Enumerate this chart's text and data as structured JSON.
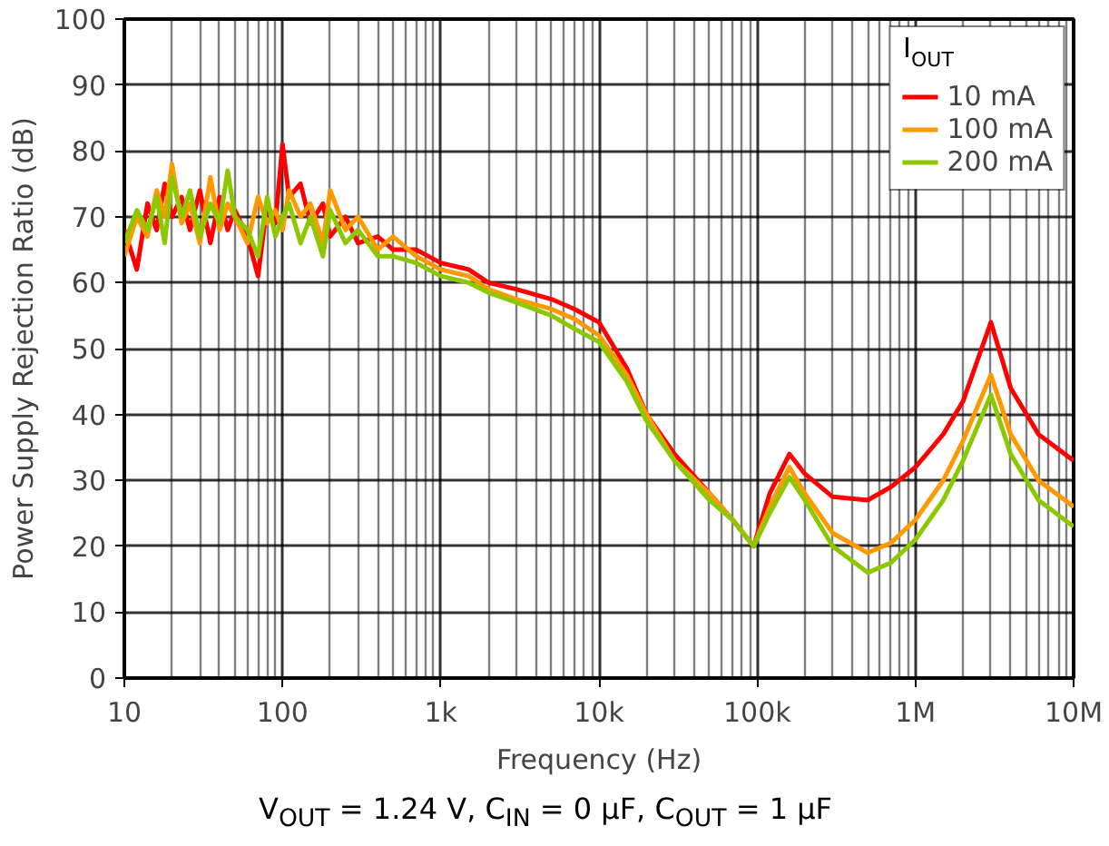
{
  "chart_data": {
    "type": "line",
    "xlabel": "Frequency (Hz)",
    "ylabel": "Power Supply Rejection Ratio (dB)",
    "legend_title": "I$_{OUT}$",
    "log": "x",
    "grid": true,
    "legend": "top right",
    "line_style": "solid",
    "marker": "none",
    "xlim": [
      10,
      10000000
    ],
    "xticks": [
      {
        "value": 10,
        "label": "10"
      },
      {
        "value": 100,
        "label": "100"
      },
      {
        "value": 1000,
        "label": "1k"
      },
      {
        "value": 10000,
        "label": "10k"
      },
      {
        "value": 100000,
        "label": "100k"
      },
      {
        "value": 1000000,
        "label": "1M"
      },
      {
        "value": 10000000,
        "label": "10M"
      }
    ],
    "ylim": [
      0,
      100
    ],
    "yticks": [
      0,
      10,
      20,
      30,
      40,
      50,
      60,
      70,
      80,
      90,
      100
    ],
    "x": [
      10,
      12,
      14,
      16,
      18,
      20,
      23,
      26,
      30,
      35,
      40,
      45,
      50,
      60,
      70,
      80,
      90,
      100,
      110,
      130,
      150,
      180,
      200,
      250,
      300,
      400,
      500,
      700,
      1000,
      1500,
      2000,
      3000,
      5000,
      7000,
      10000,
      15000,
      20000,
      30000,
      50000,
      70000,
      95000,
      120000,
      160000,
      200000,
      300000,
      500000,
      700000,
      1000000,
      1500000,
      2000000,
      3000000,
      4000000,
      6000000,
      10000000
    ],
    "annotations": [
      "V$_{OUT}$ = 1.24 V, C$_{IN}$ = 0 µF, C$_{OUT}$ = 1 µF"
    ],
    "series": [
      {
        "name": "10 mA",
        "color": "#ff0000",
        "values": [
          68,
          62,
          72,
          68,
          75,
          70,
          73,
          68,
          74,
          66,
          73,
          68,
          71,
          67,
          61,
          72,
          69,
          81,
          73,
          75,
          69,
          72,
          67,
          70,
          66,
          67,
          65,
          65,
          63,
          62,
          60,
          59,
          57.5,
          56,
          54,
          47,
          40,
          34,
          28,
          24,
          20,
          28,
          34,
          31,
          27.5,
          27,
          29,
          32,
          37,
          42,
          54,
          44,
          37,
          33
        ]
      },
      {
        "name": "100 mA",
        "color": "#ff9900",
        "values": [
          64,
          70,
          67,
          74,
          70,
          78,
          69,
          72,
          66,
          76,
          68,
          72,
          70,
          66,
          73,
          69,
          71,
          68,
          74,
          70,
          72,
          66,
          74,
          68,
          70,
          65,
          67,
          64,
          62,
          61,
          59,
          57.5,
          56,
          54.5,
          52,
          46,
          40,
          33,
          28,
          24,
          20,
          26,
          32,
          28,
          22,
          19,
          20.5,
          24,
          30,
          36,
          46,
          37,
          30,
          26
        ]
      },
      {
        "name": "200 mA",
        "color": "#8cc800",
        "values": [
          66,
          71,
          68,
          73,
          66,
          76,
          70,
          74,
          67,
          72,
          69,
          77,
          70,
          68,
          64,
          73,
          67,
          70,
          72,
          66,
          70,
          64,
          71,
          66,
          68,
          64,
          64,
          63,
          61,
          60,
          58.5,
          57,
          55,
          53,
          51,
          45,
          39,
          33,
          27,
          24,
          20,
          25,
          30.5,
          27,
          20,
          16,
          17.5,
          21,
          27,
          33,
          43,
          34,
          27,
          23
        ]
      }
    ]
  }
}
